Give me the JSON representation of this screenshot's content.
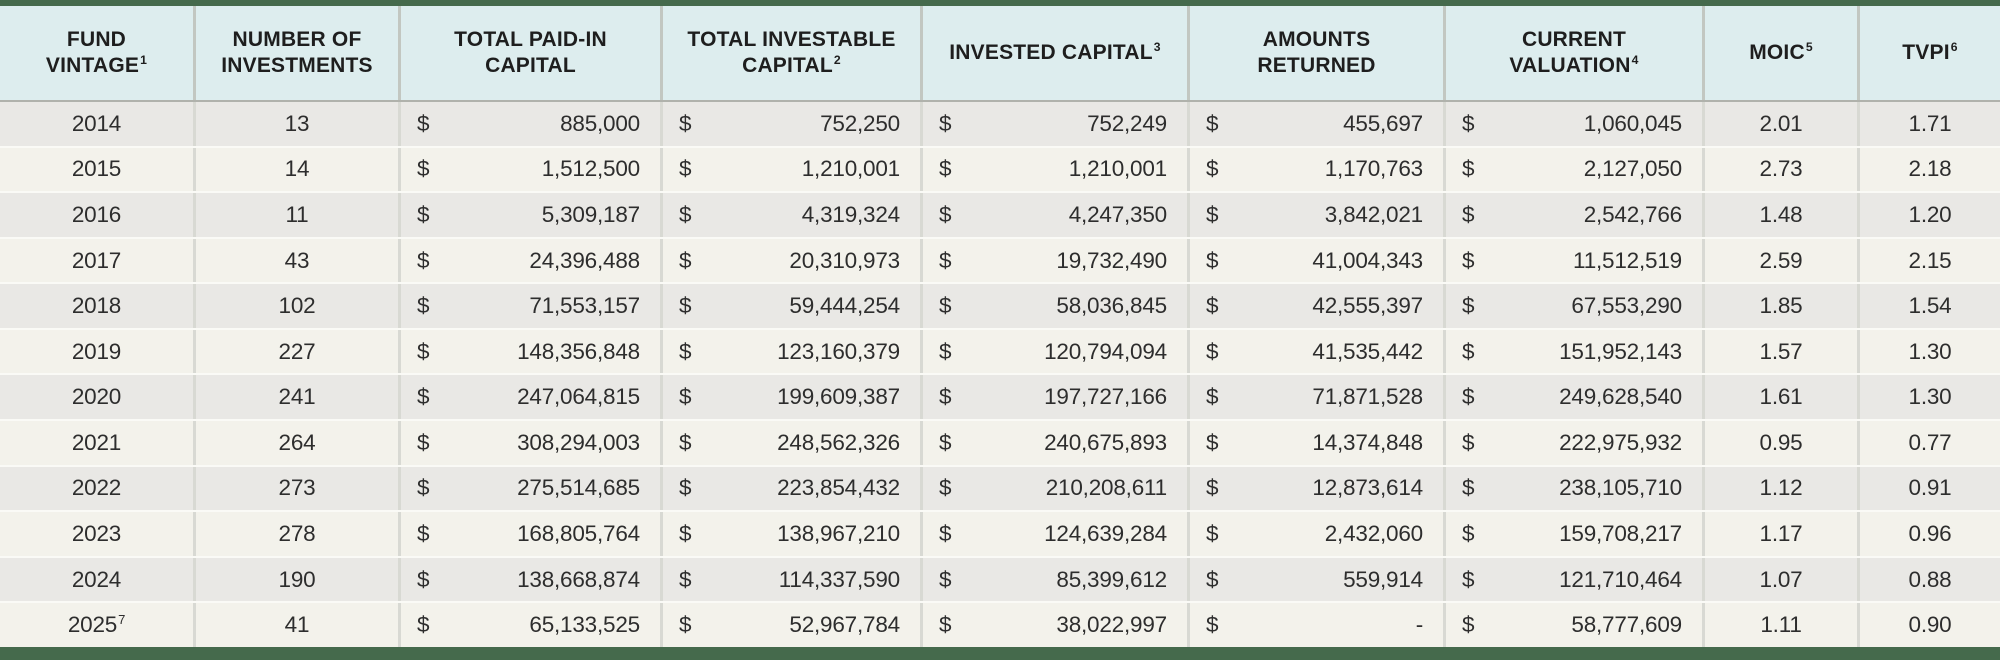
{
  "chart_data": {
    "type": "table",
    "currency_symbol": "$",
    "columns": [
      {
        "id": "vintage",
        "label": "FUND\nVINTAGE",
        "sup": "1",
        "type": "plain"
      },
      {
        "id": "num_investments",
        "label": "NUMBER OF\nINVESTMENTS",
        "sup": "",
        "type": "plain"
      },
      {
        "id": "paid_in",
        "label": "TOTAL PAID-IN\nCAPITAL",
        "sup": "",
        "type": "currency"
      },
      {
        "id": "investable",
        "label": "TOTAL INVESTABLE\nCAPITAL",
        "sup": "2",
        "type": "currency"
      },
      {
        "id": "invested",
        "label": "INVESTED CAPITAL",
        "sup": "3",
        "type": "currency"
      },
      {
        "id": "returned",
        "label": "AMOUNTS\nRETURNED",
        "sup": "",
        "type": "currency"
      },
      {
        "id": "valuation",
        "label": "CURRENT\nVALUATION",
        "sup": "4",
        "type": "currency"
      },
      {
        "id": "moic",
        "label": "MOIC",
        "sup": "5",
        "type": "plain"
      },
      {
        "id": "tvpi",
        "label": "TVPI",
        "sup": "6",
        "type": "plain"
      }
    ],
    "rows": [
      {
        "sup": "",
        "cells": [
          "2014",
          "13",
          "885,000",
          "752,250",
          "752,249",
          "455,697",
          "1,060,045",
          "2.01",
          "1.71"
        ]
      },
      {
        "sup": "",
        "cells": [
          "2015",
          "14",
          "1,512,500",
          "1,210,001",
          "1,210,001",
          "1,170,763",
          "2,127,050",
          "2.73",
          "2.18"
        ]
      },
      {
        "sup": "",
        "cells": [
          "2016",
          "11",
          "5,309,187",
          "4,319,324",
          "4,247,350",
          "3,842,021",
          "2,542,766",
          "1.48",
          "1.20"
        ]
      },
      {
        "sup": "",
        "cells": [
          "2017",
          "43",
          "24,396,488",
          "20,310,973",
          "19,732,490",
          "41,004,343",
          "11,512,519",
          "2.59",
          "2.15"
        ]
      },
      {
        "sup": "",
        "cells": [
          "2018",
          "102",
          "71,553,157",
          "59,444,254",
          "58,036,845",
          "42,555,397",
          "67,553,290",
          "1.85",
          "1.54"
        ]
      },
      {
        "sup": "",
        "cells": [
          "2019",
          "227",
          "148,356,848",
          "123,160,379",
          "120,794,094",
          "41,535,442",
          "151,952,143",
          "1.57",
          "1.30"
        ]
      },
      {
        "sup": "",
        "cells": [
          "2020",
          "241",
          "247,064,815",
          "199,609,387",
          "197,727,166",
          "71,871,528",
          "249,628,540",
          "1.61",
          "1.30"
        ]
      },
      {
        "sup": "",
        "cells": [
          "2021",
          "264",
          "308,294,003",
          "248,562,326",
          "240,675,893",
          "14,374,848",
          "222,975,932",
          "0.95",
          "0.77"
        ]
      },
      {
        "sup": "",
        "cells": [
          "2022",
          "273",
          "275,514,685",
          "223,854,432",
          "210,208,611",
          "12,873,614",
          "238,105,710",
          "1.12",
          "0.91"
        ]
      },
      {
        "sup": "",
        "cells": [
          "2023",
          "278",
          "168,805,764",
          "138,967,210",
          "124,639,284",
          "2,432,060",
          "159,708,217",
          "1.17",
          "0.96"
        ]
      },
      {
        "sup": "",
        "cells": [
          "2024",
          "190",
          "138,668,874",
          "114,337,590",
          "85,399,612",
          "559,914",
          "121,710,464",
          "1.07",
          "0.88"
        ]
      },
      {
        "sup": "7",
        "cells": [
          "2025",
          "41",
          "65,133,525",
          "52,967,784",
          "38,022,997",
          "-",
          "58,777,609",
          "1.11",
          "0.90"
        ]
      }
    ]
  },
  "colors": {
    "accent_green": "#456a4c",
    "header_bg": "#ddedee",
    "row_gray": "#e9e8e5",
    "row_cream": "#f3f2eb",
    "header_separator": "#c2c7c1",
    "body_separator": "#d8d9d3",
    "row_separator": "#fafaf6",
    "header_underline": "#b0b2ac",
    "header_text": "#1e1e1e",
    "body_text": "#2d2d2d"
  }
}
